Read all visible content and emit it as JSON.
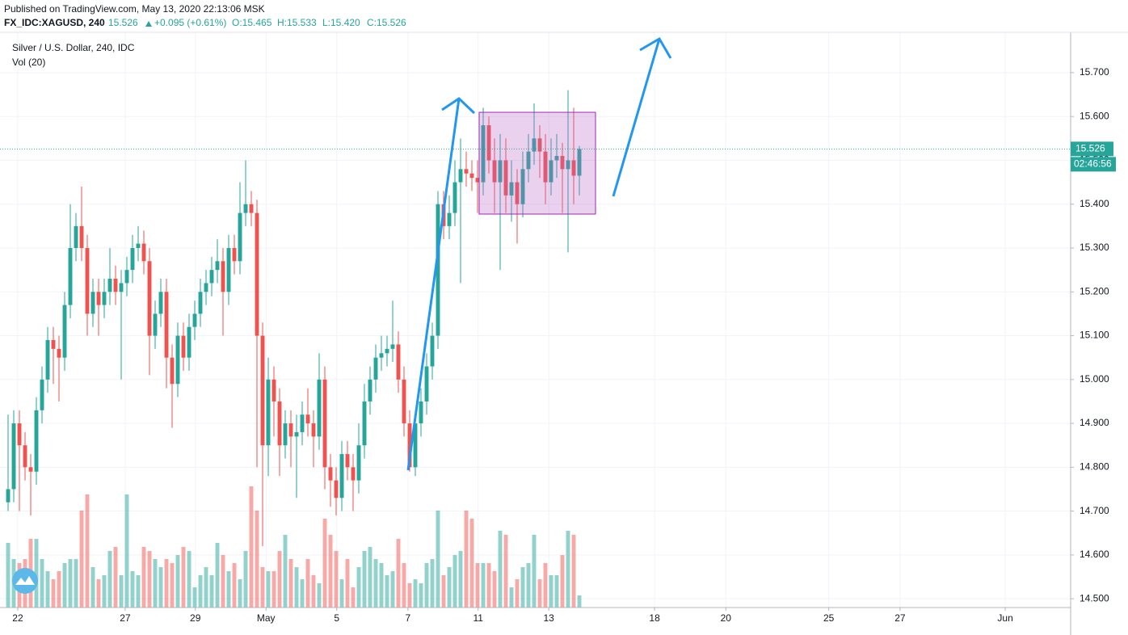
{
  "header": {
    "source": "Published on TradingView.com, May 13, 2020 22:13:06 MSK",
    "symbol": "FX_IDC:XAGUSD, 240",
    "change": "+0.095 (+0.61%)",
    "open": "O:15.465",
    "high": "H:15.533",
    "low": "L:15.420",
    "close": "C:15.526"
  },
  "chart_data": {
    "type": "candlestick",
    "title": "Silver / U.S. Dollar, 240, IDC",
    "subtitle": "Vol (20)",
    "last_price": 15.526,
    "countdown": "02:46:56",
    "up_color": "#26a69a",
    "down_color": "#ef5350",
    "grid": true,
    "ylim": [
      14.48,
      15.792
    ],
    "yticks": [
      {
        "value": 14.5,
        "label": "14.500"
      },
      {
        "value": 14.6,
        "label": "14.600"
      },
      {
        "value": 14.7,
        "label": "14.700"
      },
      {
        "value": 14.8,
        "label": "14.800"
      },
      {
        "value": 14.9,
        "label": "14.900"
      },
      {
        "value": 15.0,
        "label": "15.000"
      },
      {
        "value": 15.1,
        "label": "15.100"
      },
      {
        "value": 15.2,
        "label": "15.200"
      },
      {
        "value": 15.3,
        "label": "15.300"
      },
      {
        "value": 15.4,
        "label": "15.400"
      },
      {
        "value": 15.5,
        "label": "15.500"
      },
      {
        "value": 15.6,
        "label": "15.600"
      },
      {
        "value": 15.7,
        "label": "15.700"
      }
    ],
    "xlim": [
      -1.43,
      187.86
    ],
    "xticks": [
      {
        "value": 1.71,
        "label": "22"
      },
      {
        "value": 20.7,
        "label": "27"
      },
      {
        "value": 33.1,
        "label": "29"
      },
      {
        "value": 45.6,
        "label": "May"
      },
      {
        "value": 58.1,
        "label": "5"
      },
      {
        "value": 70.7,
        "label": "7"
      },
      {
        "value": 83.1,
        "label": "11"
      },
      {
        "value": 95.6,
        "label": "13"
      },
      {
        "value": 114.3,
        "label": "18"
      },
      {
        "value": 126.9,
        "label": "20"
      },
      {
        "value": 145.1,
        "label": "25"
      },
      {
        "value": 157.7,
        "label": "27"
      },
      {
        "value": 176.3,
        "label": "Jun"
      }
    ],
    "open": [
      14.72,
      14.75,
      14.9,
      14.85,
      14.8,
      14.79,
      14.93,
      15.0,
      15.09,
      15.07,
      15.05,
      15.17,
      15.3,
      15.35,
      15.3,
      15.15,
      15.2,
      15.17,
      15.2,
      15.23,
      15.2,
      15.22,
      15.25,
      15.3,
      15.31,
      15.27,
      15.1,
      15.15,
      15.2,
      15.05,
      14.99,
      15.1,
      15.05,
      15.12,
      15.15,
      15.2,
      15.22,
      15.25,
      15.27,
      15.2,
      15.3,
      15.27,
      15.38,
      15.4,
      15.38,
      15.1,
      14.85,
      15.0,
      14.95,
      14.85,
      14.9,
      14.87,
      14.88,
      14.92,
      14.9,
      14.87,
      15.0,
      14.8,
      14.77,
      14.73,
      14.83,
      14.8,
      14.77,
      14.85,
      14.95,
      15.0,
      15.05,
      15.06,
      15.07,
      15.08,
      15.0,
      14.9,
      14.8,
      14.9,
      14.95,
      15.03,
      15.1,
      15.4,
      15.35,
      15.38,
      15.45,
      15.48,
      15.47,
      15.46,
      15.45,
      15.58,
      15.5,
      15.45,
      15.5,
      15.42,
      15.45,
      15.4,
      15.48,
      15.52,
      15.55,
      15.52,
      15.45,
      15.5,
      15.51,
      15.48,
      15.5,
      15.465
    ],
    "high": [
      14.92,
      14.93,
      14.93,
      14.88,
      14.83,
      14.96,
      15.03,
      15.12,
      15.12,
      15.1,
      15.2,
      15.4,
      15.38,
      15.44,
      15.33,
      15.23,
      15.23,
      15.23,
      15.3,
      15.26,
      15.25,
      15.28,
      15.33,
      15.35,
      15.34,
      15.3,
      15.18,
      15.23,
      15.23,
      15.08,
      15.13,
      15.13,
      15.15,
      15.18,
      15.23,
      15.25,
      15.28,
      15.32,
      15.3,
      15.33,
      15.33,
      15.45,
      15.5,
      15.43,
      15.41,
      15.13,
      15.05,
      15.03,
      14.98,
      14.93,
      14.93,
      14.92,
      14.95,
      14.98,
      14.93,
      15.06,
      15.03,
      14.83,
      14.8,
      14.86,
      14.86,
      14.83,
      14.9,
      14.99,
      15.03,
      15.08,
      15.1,
      15.1,
      15.18,
      15.11,
      15.03,
      14.93,
      14.93,
      14.98,
      15.06,
      15.13,
      15.43,
      15.43,
      15.42,
      15.5,
      15.55,
      15.52,
      15.5,
      15.5,
      15.62,
      15.6,
      15.55,
      15.56,
      15.55,
      15.5,
      15.48,
      15.52,
      15.56,
      15.63,
      15.58,
      15.56,
      15.55,
      15.56,
      15.54,
      15.66,
      15.62,
      15.533
    ],
    "low": [
      14.7,
      14.72,
      14.7,
      14.77,
      14.69,
      14.76,
      14.9,
      14.97,
      14.99,
      14.95,
      15.02,
      15.14,
      15.27,
      15.27,
      15.1,
      15.12,
      15.1,
      15.14,
      15.17,
      15.17,
      15.0,
      15.19,
      15.22,
      15.27,
      15.24,
      15.01,
      15.07,
      15.12,
      14.98,
      14.89,
      14.96,
      15.02,
      15.02,
      15.09,
      15.12,
      15.17,
      15.19,
      15.22,
      15.1,
      15.17,
      15.24,
      15.24,
      15.35,
      15.35,
      14.8,
      14.62,
      14.78,
      14.87,
      14.78,
      14.82,
      14.8,
      14.73,
      14.85,
      14.87,
      14.8,
      14.84,
      14.75,
      14.71,
      14.69,
      14.7,
      14.77,
      14.7,
      14.74,
      14.82,
      14.92,
      14.97,
      15.02,
      15.03,
      15.04,
      14.97,
      14.87,
      14.79,
      14.78,
      14.87,
      14.92,
      15.0,
      15.07,
      15.32,
      15.32,
      15.35,
      15.22,
      15.44,
      15.43,
      15.38,
      15.42,
      15.47,
      15.38,
      15.25,
      15.38,
      15.36,
      15.31,
      15.37,
      15.45,
      15.49,
      15.46,
      15.4,
      15.42,
      15.46,
      15.38,
      15.29,
      15.4,
      15.42
    ],
    "close": [
      14.75,
      14.9,
      14.85,
      14.8,
      14.79,
      14.93,
      15.0,
      15.09,
      15.07,
      15.05,
      15.17,
      15.3,
      15.35,
      15.3,
      15.15,
      15.2,
      15.17,
      15.2,
      15.23,
      15.2,
      15.22,
      15.25,
      15.3,
      15.31,
      15.27,
      15.1,
      15.15,
      15.2,
      15.05,
      14.99,
      15.1,
      15.05,
      15.12,
      15.15,
      15.2,
      15.22,
      15.25,
      15.27,
      15.2,
      15.3,
      15.27,
      15.38,
      15.4,
      15.38,
      15.1,
      14.85,
      15.0,
      14.95,
      14.85,
      14.9,
      14.87,
      14.88,
      14.92,
      14.9,
      14.87,
      15.0,
      14.8,
      14.77,
      14.73,
      14.83,
      14.8,
      14.77,
      14.85,
      14.95,
      15.0,
      15.05,
      15.06,
      15.07,
      15.08,
      15.0,
      14.9,
      14.8,
      14.9,
      14.95,
      15.03,
      15.1,
      15.4,
      15.35,
      15.38,
      15.45,
      15.48,
      15.47,
      15.46,
      15.45,
      15.58,
      15.5,
      15.45,
      15.5,
      15.42,
      15.45,
      15.4,
      15.48,
      15.52,
      15.55,
      15.52,
      15.45,
      15.5,
      15.51,
      15.48,
      15.5,
      15.465,
      15.526
    ],
    "volume": [
      80,
      60,
      55,
      60,
      85,
      85,
      60,
      45,
      35,
      45,
      55,
      60,
      60,
      120,
      140,
      50,
      35,
      40,
      70,
      75,
      40,
      140,
      45,
      40,
      75,
      70,
      60,
      50,
      60,
      55,
      65,
      75,
      70,
      25,
      40,
      50,
      40,
      80,
      65,
      45,
      55,
      35,
      70,
      150,
      120,
      50,
      45,
      45,
      70,
      90,
      60,
      50,
      35,
      60,
      40,
      30,
      110,
      90,
      70,
      35,
      60,
      25,
      50,
      70,
      75,
      60,
      55,
      40,
      45,
      85,
      55,
      30,
      35,
      30,
      55,
      60,
      120,
      40,
      50,
      65,
      70,
      120,
      110,
      55,
      55,
      55,
      45,
      95,
      90,
      25,
      35,
      50,
      55,
      90,
      35,
      55,
      40,
      40,
      65,
      95,
      90,
      15
    ]
  }
}
